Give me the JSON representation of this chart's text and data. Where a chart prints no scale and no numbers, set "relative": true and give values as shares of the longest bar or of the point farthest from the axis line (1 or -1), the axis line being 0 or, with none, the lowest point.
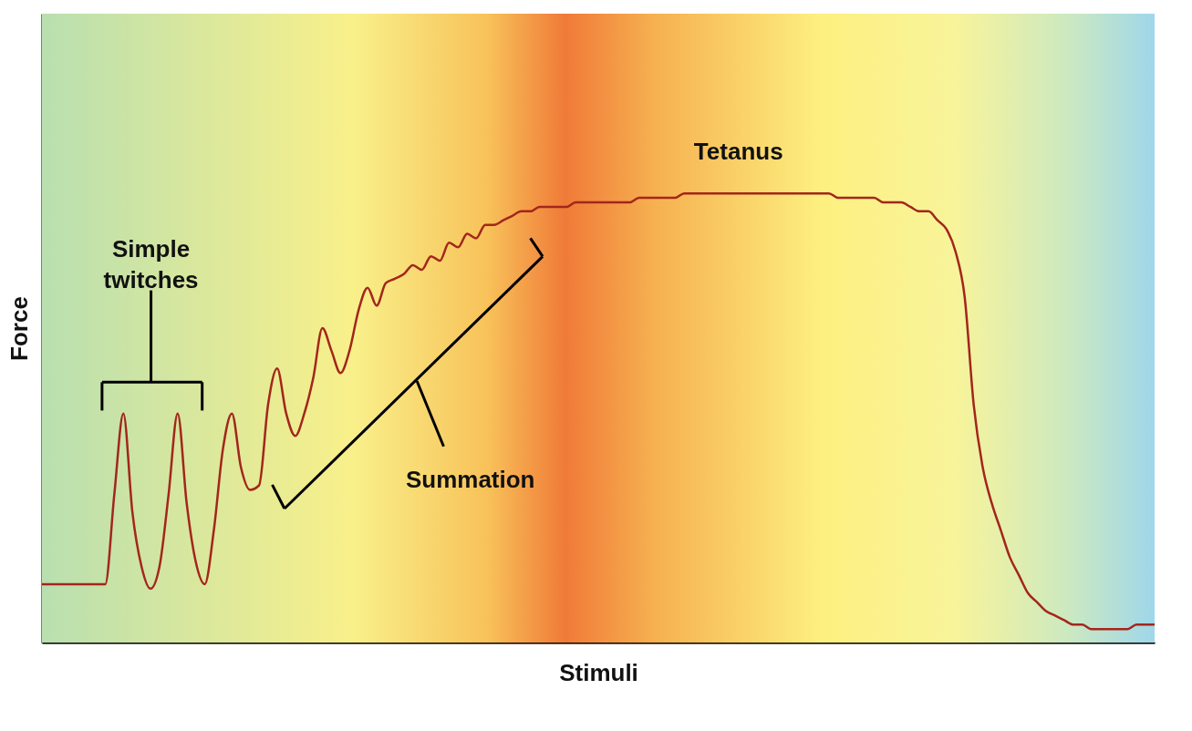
{
  "chart_data": {
    "type": "line",
    "relative": true,
    "xlabel": "Stimuli",
    "ylabel": "Force",
    "color": "#a3261c",
    "grid": false,
    "tick_labels": false,
    "annotations": [
      "Simple twitches",
      "Summation",
      "Tetanus"
    ],
    "categories": [
      null,
      null,
      null,
      null,
      null,
      null,
      null,
      null,
      null,
      null,
      null,
      null,
      null,
      null,
      null,
      null,
      null,
      null,
      null,
      null,
      null,
      null,
      null,
      null,
      null,
      null,
      null,
      null,
      null,
      null,
      null,
      null,
      null,
      null,
      null,
      null,
      null,
      null,
      null,
      null,
      null,
      null,
      null,
      null,
      null,
      null,
      null,
      null,
      null,
      null,
      null,
      null,
      null,
      null,
      null,
      null,
      null,
      null,
      null,
      null,
      null,
      null,
      null,
      null,
      null,
      null,
      null,
      null,
      null,
      null,
      null,
      null,
      null,
      null,
      null,
      null,
      null,
      null,
      null,
      null,
      null,
      null,
      null,
      null,
      null,
      null,
      null,
      null,
      null,
      null,
      null,
      null,
      null,
      null,
      null,
      null,
      null,
      null,
      null,
      null,
      null,
      null,
      null,
      null,
      null,
      null,
      null,
      null,
      null,
      null,
      null,
      null,
      null,
      null,
      null,
      null,
      null,
      null,
      null,
      null,
      null,
      null,
      null,
      null
    ],
    "values": [
      0.13,
      0.13,
      0.13,
      0.13,
      0.13,
      0.13,
      0.13,
      0.13,
      0.33,
      0.51,
      0.29,
      0.17,
      0.12,
      0.17,
      0.33,
      0.51,
      0.31,
      0.18,
      0.13,
      0.25,
      0.43,
      0.51,
      0.39,
      0.34,
      0.35,
      0.53,
      0.61,
      0.51,
      0.46,
      0.51,
      0.59,
      0.7,
      0.65,
      0.6,
      0.65,
      0.74,
      0.79,
      0.75,
      0.8,
      0.81,
      0.82,
      0.84,
      0.83,
      0.86,
      0.85,
      0.89,
      0.88,
      0.91,
      0.9,
      0.93,
      0.93,
      0.94,
      0.95,
      0.96,
      0.96,
      0.97,
      0.97,
      0.97,
      0.97,
      0.98,
      0.98,
      0.98,
      0.98,
      0.98,
      0.98,
      0.98,
      0.99,
      0.99,
      0.99,
      0.99,
      0.99,
      1.0,
      1.0,
      1.0,
      1.0,
      1.0,
      1.0,
      1.0,
      1.0,
      1.0,
      1.0,
      1.0,
      1.0,
      1.0,
      1.0,
      1.0,
      1.0,
      1.0,
      0.99,
      0.99,
      0.99,
      0.99,
      0.99,
      0.98,
      0.98,
      0.98,
      0.97,
      0.96,
      0.96,
      0.94,
      0.92,
      0.87,
      0.77,
      0.53,
      0.39,
      0.31,
      0.25,
      0.19,
      0.15,
      0.11,
      0.09,
      0.07,
      0.06,
      0.05,
      0.04,
      0.04,
      0.03,
      0.03,
      0.03,
      0.03,
      0.03,
      0.04,
      0.04,
      0.04
    ]
  }
}
